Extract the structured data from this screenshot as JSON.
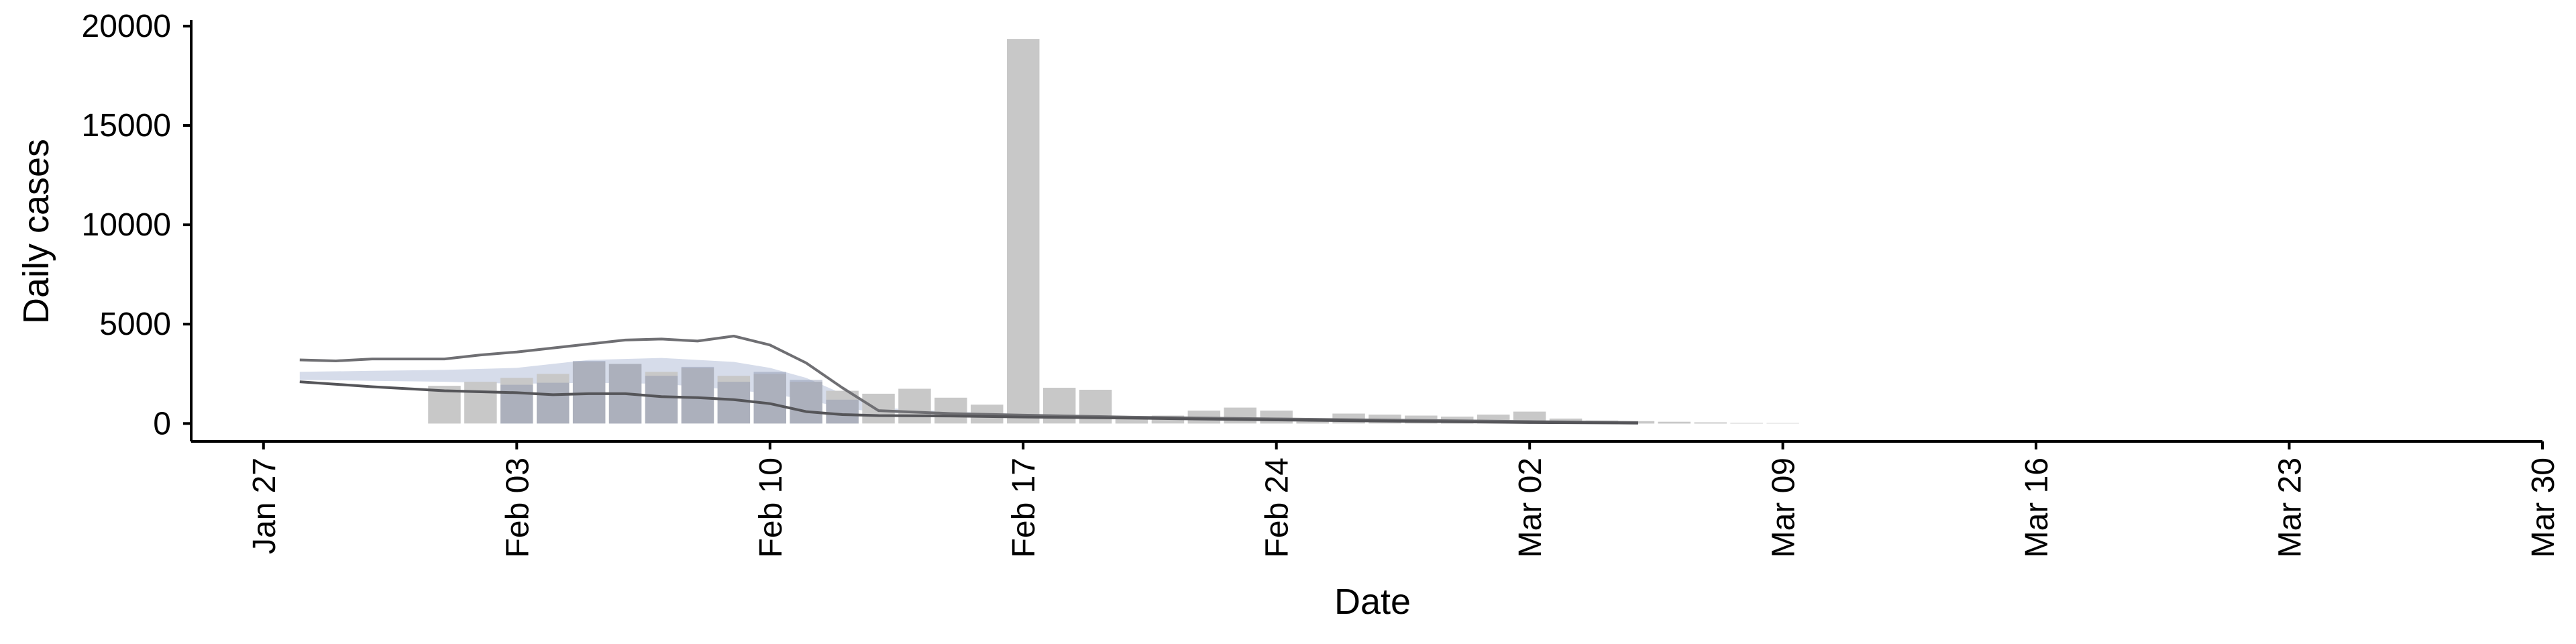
{
  "chart_data": {
    "type": "bar",
    "title": "",
    "xlabel": "Date",
    "ylabel": "Daily cases",
    "xlim": [
      "2020-01-25",
      "2020-03-30"
    ],
    "ylim": [
      -900,
      20300
    ],
    "yticks": [
      0,
      5000,
      10000,
      15000,
      20000
    ],
    "xticks": [
      {
        "date": "2020-01-27",
        "label": "Jan 27"
      },
      {
        "date": "2020-02-03",
        "label": "Feb 03"
      },
      {
        "date": "2020-02-10",
        "label": "Feb 10"
      },
      {
        "date": "2020-02-17",
        "label": "Feb 17"
      },
      {
        "date": "2020-02-24",
        "label": "Feb 24"
      },
      {
        "date": "2020-03-02",
        "label": "Mar 02"
      },
      {
        "date": "2020-03-09",
        "label": "Mar 09"
      },
      {
        "date": "2020-03-16",
        "label": "Mar 16"
      },
      {
        "date": "2020-03-23",
        "label": "Mar 23"
      },
      {
        "date": "2020-03-30",
        "label": "Mar 30"
      }
    ],
    "observed_cases": {
      "dates": [
        "2020-02-01",
        "2020-02-02",
        "2020-02-03",
        "2020-02-04",
        "2020-02-05",
        "2020-02-06",
        "2020-02-07",
        "2020-02-08",
        "2020-02-09",
        "2020-02-10",
        "2020-02-11",
        "2020-02-12",
        "2020-02-13",
        "2020-02-14",
        "2020-02-15",
        "2020-02-16",
        "2020-02-17",
        "2020-02-18",
        "2020-02-19",
        "2020-02-20",
        "2020-02-21",
        "2020-02-22",
        "2020-02-23",
        "2020-02-24",
        "2020-02-25",
        "2020-02-26",
        "2020-02-27",
        "2020-02-28",
        "2020-02-29",
        "2020-03-01",
        "2020-03-02",
        "2020-03-03",
        "2020-03-04",
        "2020-03-05",
        "2020-03-06",
        "2020-03-07",
        "2020-03-08",
        "2020-03-09"
      ],
      "values": [
        1900,
        2100,
        2300,
        2500,
        3100,
        3000,
        2600,
        2800,
        2400,
        2500,
        2100,
        1650,
        1500,
        1750,
        1300,
        950,
        19350,
        1800,
        1700,
        350,
        400,
        650,
        800,
        650,
        100,
        500,
        450,
        400,
        350,
        450,
        600,
        250,
        150,
        120,
        90,
        60,
        30,
        20
      ],
      "color": "#c8c8c8"
    },
    "reported_cases": {
      "dates": [
        "2020-02-03",
        "2020-02-04",
        "2020-02-05",
        "2020-02-06",
        "2020-02-07",
        "2020-02-08",
        "2020-02-09",
        "2020-02-10",
        "2020-02-11",
        "2020-02-12"
      ],
      "values": [
        1950,
        2050,
        3150,
        3000,
        2400,
        2850,
        2100,
        2600,
        2200,
        1200
      ],
      "color": "#8a93ad"
    },
    "estimate_band": {
      "dates": [
        "2020-01-28",
        "2020-01-30",
        "2020-02-01",
        "2020-02-03",
        "2020-02-05",
        "2020-02-07",
        "2020-02-09",
        "2020-02-10",
        "2020-02-11",
        "2020-02-12",
        "2020-02-13",
        "2020-02-15",
        "2020-02-17",
        "2020-02-20",
        "2020-02-24",
        "2020-03-02"
      ],
      "lower": [
        2200,
        2150,
        2100,
        2000,
        2050,
        2000,
        1700,
        1500,
        1200,
        800,
        550,
        450,
        380,
        300,
        200,
        60
      ],
      "upper": [
        2600,
        2650,
        2700,
        2800,
        3200,
        3300,
        3100,
        2800,
        2300,
        1500,
        800,
        600,
        480,
        380,
        260,
        90
      ],
      "color": "#b4bfd8"
    },
    "forecast_fade": {
      "dates": [
        "2020-03-02",
        "2020-03-04",
        "2020-03-06",
        "2020-03-08",
        "2020-03-09"
      ],
      "values": [
        80,
        60,
        40,
        20,
        10
      ],
      "color": "#c8c8c8"
    },
    "upper_bound": {
      "dates": [
        "2020-01-28",
        "2020-01-29",
        "2020-01-30",
        "2020-02-01",
        "2020-02-02",
        "2020-02-03",
        "2020-02-04",
        "2020-02-05",
        "2020-02-06",
        "2020-02-07",
        "2020-02-08",
        "2020-02-09",
        "2020-02-10",
        "2020-02-11",
        "2020-02-12",
        "2020-02-13",
        "2020-02-15",
        "2020-02-17",
        "2020-02-20",
        "2020-02-24",
        "2020-03-02",
        "2020-03-05"
      ],
      "values": [
        3200,
        3150,
        3250,
        3250,
        3450,
        3600,
        3800,
        4000,
        4200,
        4250,
        4150,
        4400,
        3950,
        3050,
        1800,
        650,
        500,
        420,
        320,
        230,
        100,
        50
      ],
      "color": "#6f6f73"
    },
    "lower_bound": {
      "dates": [
        "2020-01-28",
        "2020-01-30",
        "2020-02-01",
        "2020-02-03",
        "2020-02-04",
        "2020-02-05",
        "2020-02-06",
        "2020-02-07",
        "2020-02-08",
        "2020-02-09",
        "2020-02-10",
        "2020-02-11",
        "2020-02-12",
        "2020-02-13",
        "2020-02-15",
        "2020-02-17",
        "2020-02-20",
        "2020-02-24",
        "2020-03-02",
        "2020-03-05"
      ],
      "values": [
        2100,
        1850,
        1650,
        1550,
        1450,
        1500,
        1500,
        1350,
        1300,
        1200,
        1000,
        600,
        450,
        400,
        380,
        330,
        270,
        180,
        50,
        20
      ],
      "color": "#555559"
    }
  }
}
